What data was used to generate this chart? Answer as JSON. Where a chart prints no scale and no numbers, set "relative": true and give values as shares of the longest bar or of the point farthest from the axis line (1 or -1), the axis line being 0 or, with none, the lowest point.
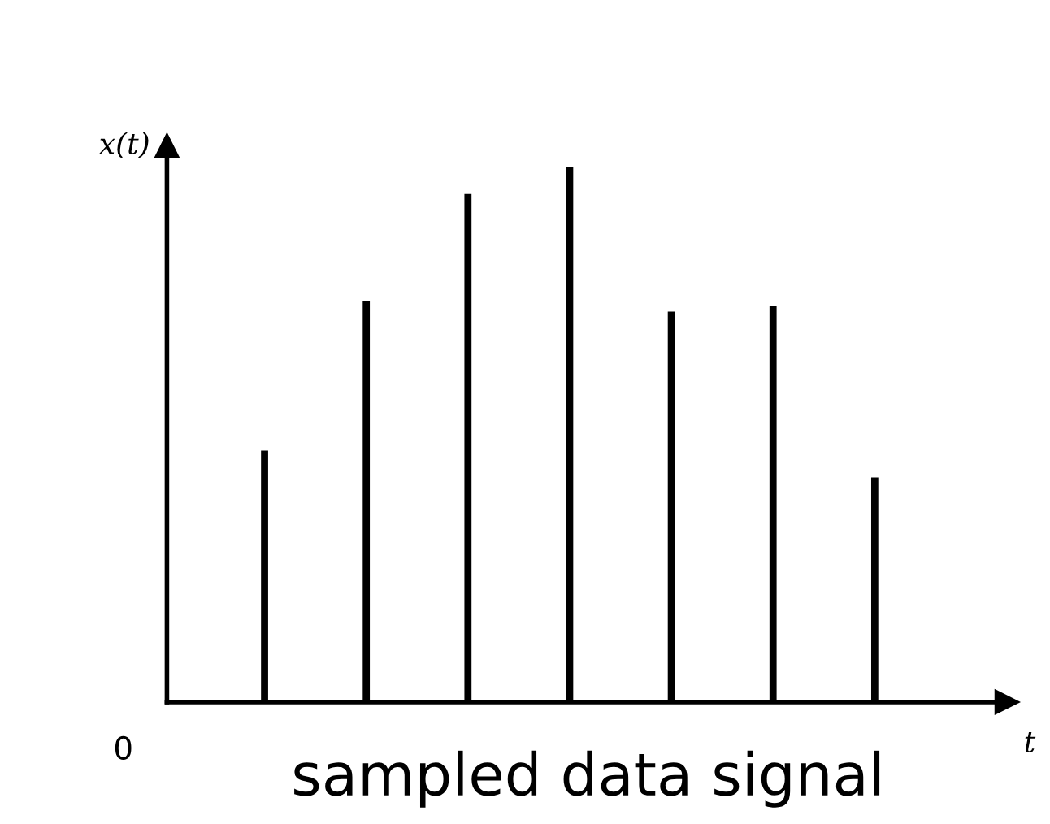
{
  "chart_data": {
    "type": "bar",
    "relative": true,
    "categories": [
      null,
      null,
      null,
      null,
      null,
      null,
      null
    ],
    "values": [
      0.47,
      0.75,
      0.95,
      1,
      0.73,
      0.74,
      0.42
    ],
    "color": "#000000",
    "ylabel": "x(t)",
    "xlabel": "t",
    "annotations": [
      "0",
      "sampled data signal"
    ],
    "grid": false
  }
}
